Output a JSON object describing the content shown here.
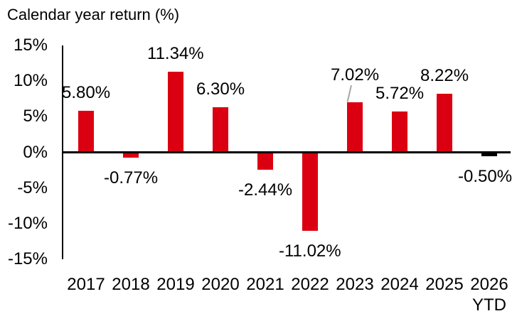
{
  "chart_data": {
    "type": "bar",
    "title": "Calendar year return (%)",
    "categories": [
      "2017",
      "2018",
      "2019",
      "2020",
      "2021",
      "2022",
      "2023",
      "2024",
      "2025",
      "2026 YTD"
    ],
    "values": [
      5.8,
      -0.77,
      11.34,
      6.3,
      -2.44,
      -11.02,
      7.02,
      5.72,
      8.22,
      -0.5
    ],
    "data_labels": [
      "5.80%",
      "-0.77%",
      "11.34%",
      "6.30%",
      "-2.44%",
      "-11.02%",
      "7.02%",
      "5.72%",
      "8.22%",
      "-0.50%"
    ],
    "colors": [
      "#db0011",
      "#db0011",
      "#db0011",
      "#db0011",
      "#db0011",
      "#db0011",
      "#db0011",
      "#db0011",
      "#db0011",
      "#000000"
    ],
    "bar_color_default": "#db0011",
    "bar_color_ytd": "#000000",
    "ylim": [
      -15,
      15
    ],
    "y_ticks": [
      15,
      10,
      5,
      0,
      -5,
      -10,
      -15
    ],
    "y_tick_labels": [
      "15%",
      "10%",
      "5%",
      "0%",
      "-5%",
      "-10%",
      "-15%"
    ],
    "callout_index": 6,
    "callout_color": "#a6a6a6",
    "axis_color": "#000000",
    "grid": false,
    "legend": false,
    "xlabel": "",
    "ylabel": ""
  }
}
